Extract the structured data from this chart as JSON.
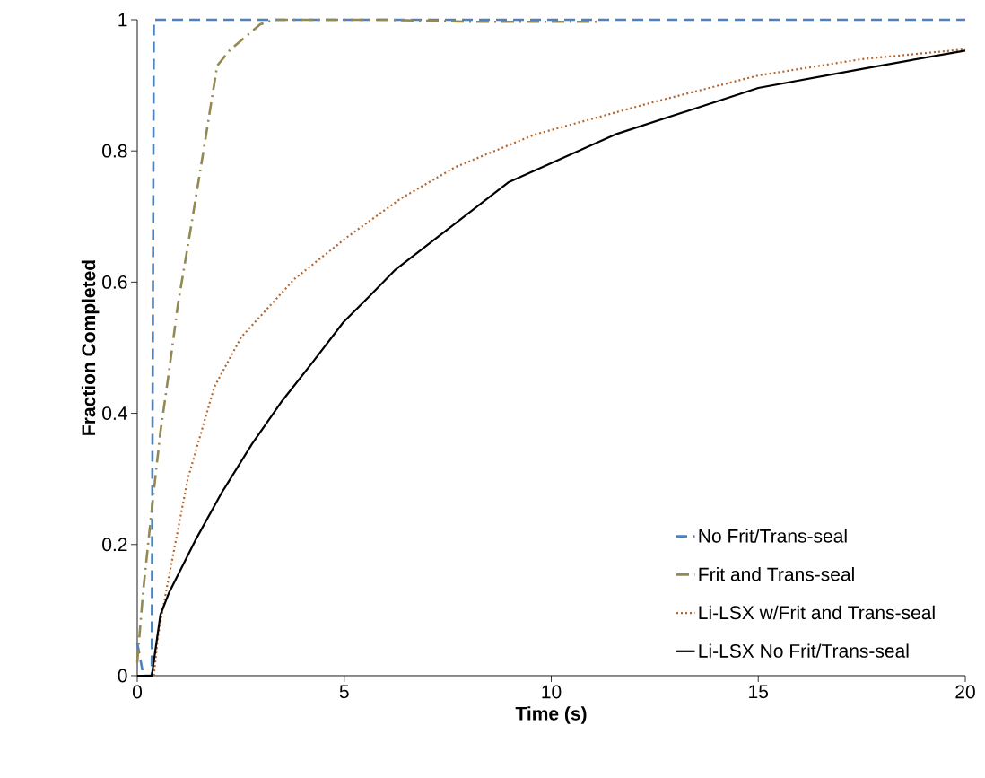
{
  "chart_data": {
    "type": "line",
    "xlabel": "Time (s)",
    "ylabel": "Fraction Completed",
    "xlim": [
      0,
      20
    ],
    "ylim": [
      0,
      1
    ],
    "xticks": [
      0,
      5,
      10,
      15,
      20
    ],
    "yticks": [
      0,
      0.2,
      0.4,
      0.6,
      0.8,
      1
    ],
    "grid": false,
    "legend": "bottom right",
    "marker": "none",
    "series": [
      {
        "name": "No Frit/Trans-seal",
        "color": "#4f81bd",
        "line_style": "dashed",
        "x": [
          0,
          0.15,
          0.35,
          0.4,
          20
        ],
        "values": [
          0.05,
          0,
          0,
          1,
          1
        ]
      },
      {
        "name": "Frit and Trans-seal",
        "color": "#938953",
        "line_style": "dashdot",
        "x": [
          0,
          0.14,
          0.35,
          0.56,
          0.77,
          0.98,
          1.3,
          1.6,
          1.93,
          2.24,
          2.97,
          3.3,
          6,
          8,
          11.1
        ],
        "values": [
          0.02,
          0.127,
          0.253,
          0.372,
          0.465,
          0.565,
          0.685,
          0.8,
          0.93,
          0.954,
          0.993,
          1,
          1,
          0.997,
          0.997
        ]
      },
      {
        "name": "Li-LSX w/Frit and Trans-seal",
        "color": "#b5652b",
        "line_style": "dotted",
        "x": [
          0.4,
          0.5,
          0.71,
          1.22,
          1.86,
          2.51,
          3.8,
          5.1,
          6.38,
          7.67,
          9.6,
          12.5,
          15,
          17.5,
          20
        ],
        "values": [
          0,
          0.06,
          0.133,
          0.3,
          0.44,
          0.516,
          0.605,
          0.67,
          0.728,
          0.775,
          0.825,
          0.875,
          0.915,
          0.94,
          0.955
        ]
      },
      {
        "name": "Li-LSX No Frit/Trans-seal",
        "color": "#000000",
        "line_style": "solid",
        "x": [
          0,
          0.35,
          0.56,
          0.77,
          1.4,
          2.04,
          2.77,
          3.5,
          4.25,
          4.98,
          5.6,
          6.22,
          8.96,
          11.54,
          15,
          17.5,
          20
        ],
        "values": [
          0,
          0,
          0.093,
          0.127,
          0.206,
          0.279,
          0.353,
          0.419,
          0.479,
          0.539,
          0.578,
          0.618,
          0.752,
          0.825,
          0.896,
          0.925,
          0.953
        ]
      }
    ]
  }
}
